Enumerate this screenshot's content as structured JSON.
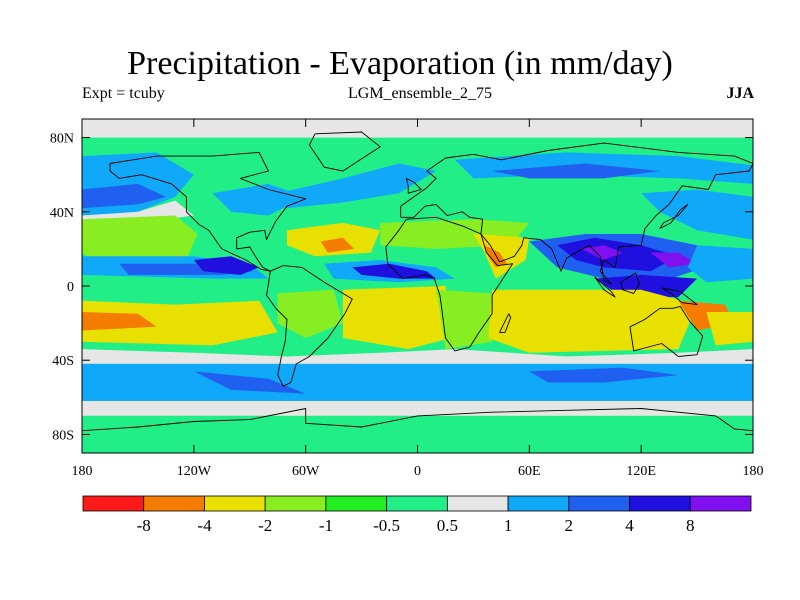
{
  "title": "Precipitation - Evaporation (in mm/day)",
  "subtitle_left": "Expt = tcuby",
  "subtitle_center": "LGM_ensemble_2_75",
  "subtitle_right": "JJA",
  "map": {
    "lon_ticks": [
      "180",
      "120W",
      "60W",
      "0",
      "60E",
      "120E",
      "180"
    ],
    "lat_ticks": [
      "80N",
      "40N",
      "0",
      "40S",
      "80S"
    ],
    "lon_range": [
      -180,
      180
    ],
    "lat_range": [
      -90,
      90
    ]
  },
  "colorbar": {
    "labels": [
      "-8",
      "-4",
      "-2",
      "-1",
      "-0.5",
      "0.5",
      "1",
      "2",
      "4",
      "8"
    ],
    "colors": [
      "#ff1a1a",
      "#f47c00",
      "#e8e000",
      "#88ee22",
      "#22ee22",
      "#22ee88",
      "#e6e6e6",
      "#10a8f8",
      "#2060f0",
      "#2010e0",
      "#8010f0"
    ]
  },
  "palette": {
    "strong_evap": "#f47c00",
    "evap": "#e8e000",
    "weak_evap": "#88ee22",
    "near_zero_neg": "#22ee22",
    "near_zero": "#22ee88",
    "neutral": "#e6e6e6",
    "wet": "#10a8f8",
    "wetter": "#2060f0",
    "very_wet": "#2010e0",
    "extreme_wet": "#8010f0"
  }
}
